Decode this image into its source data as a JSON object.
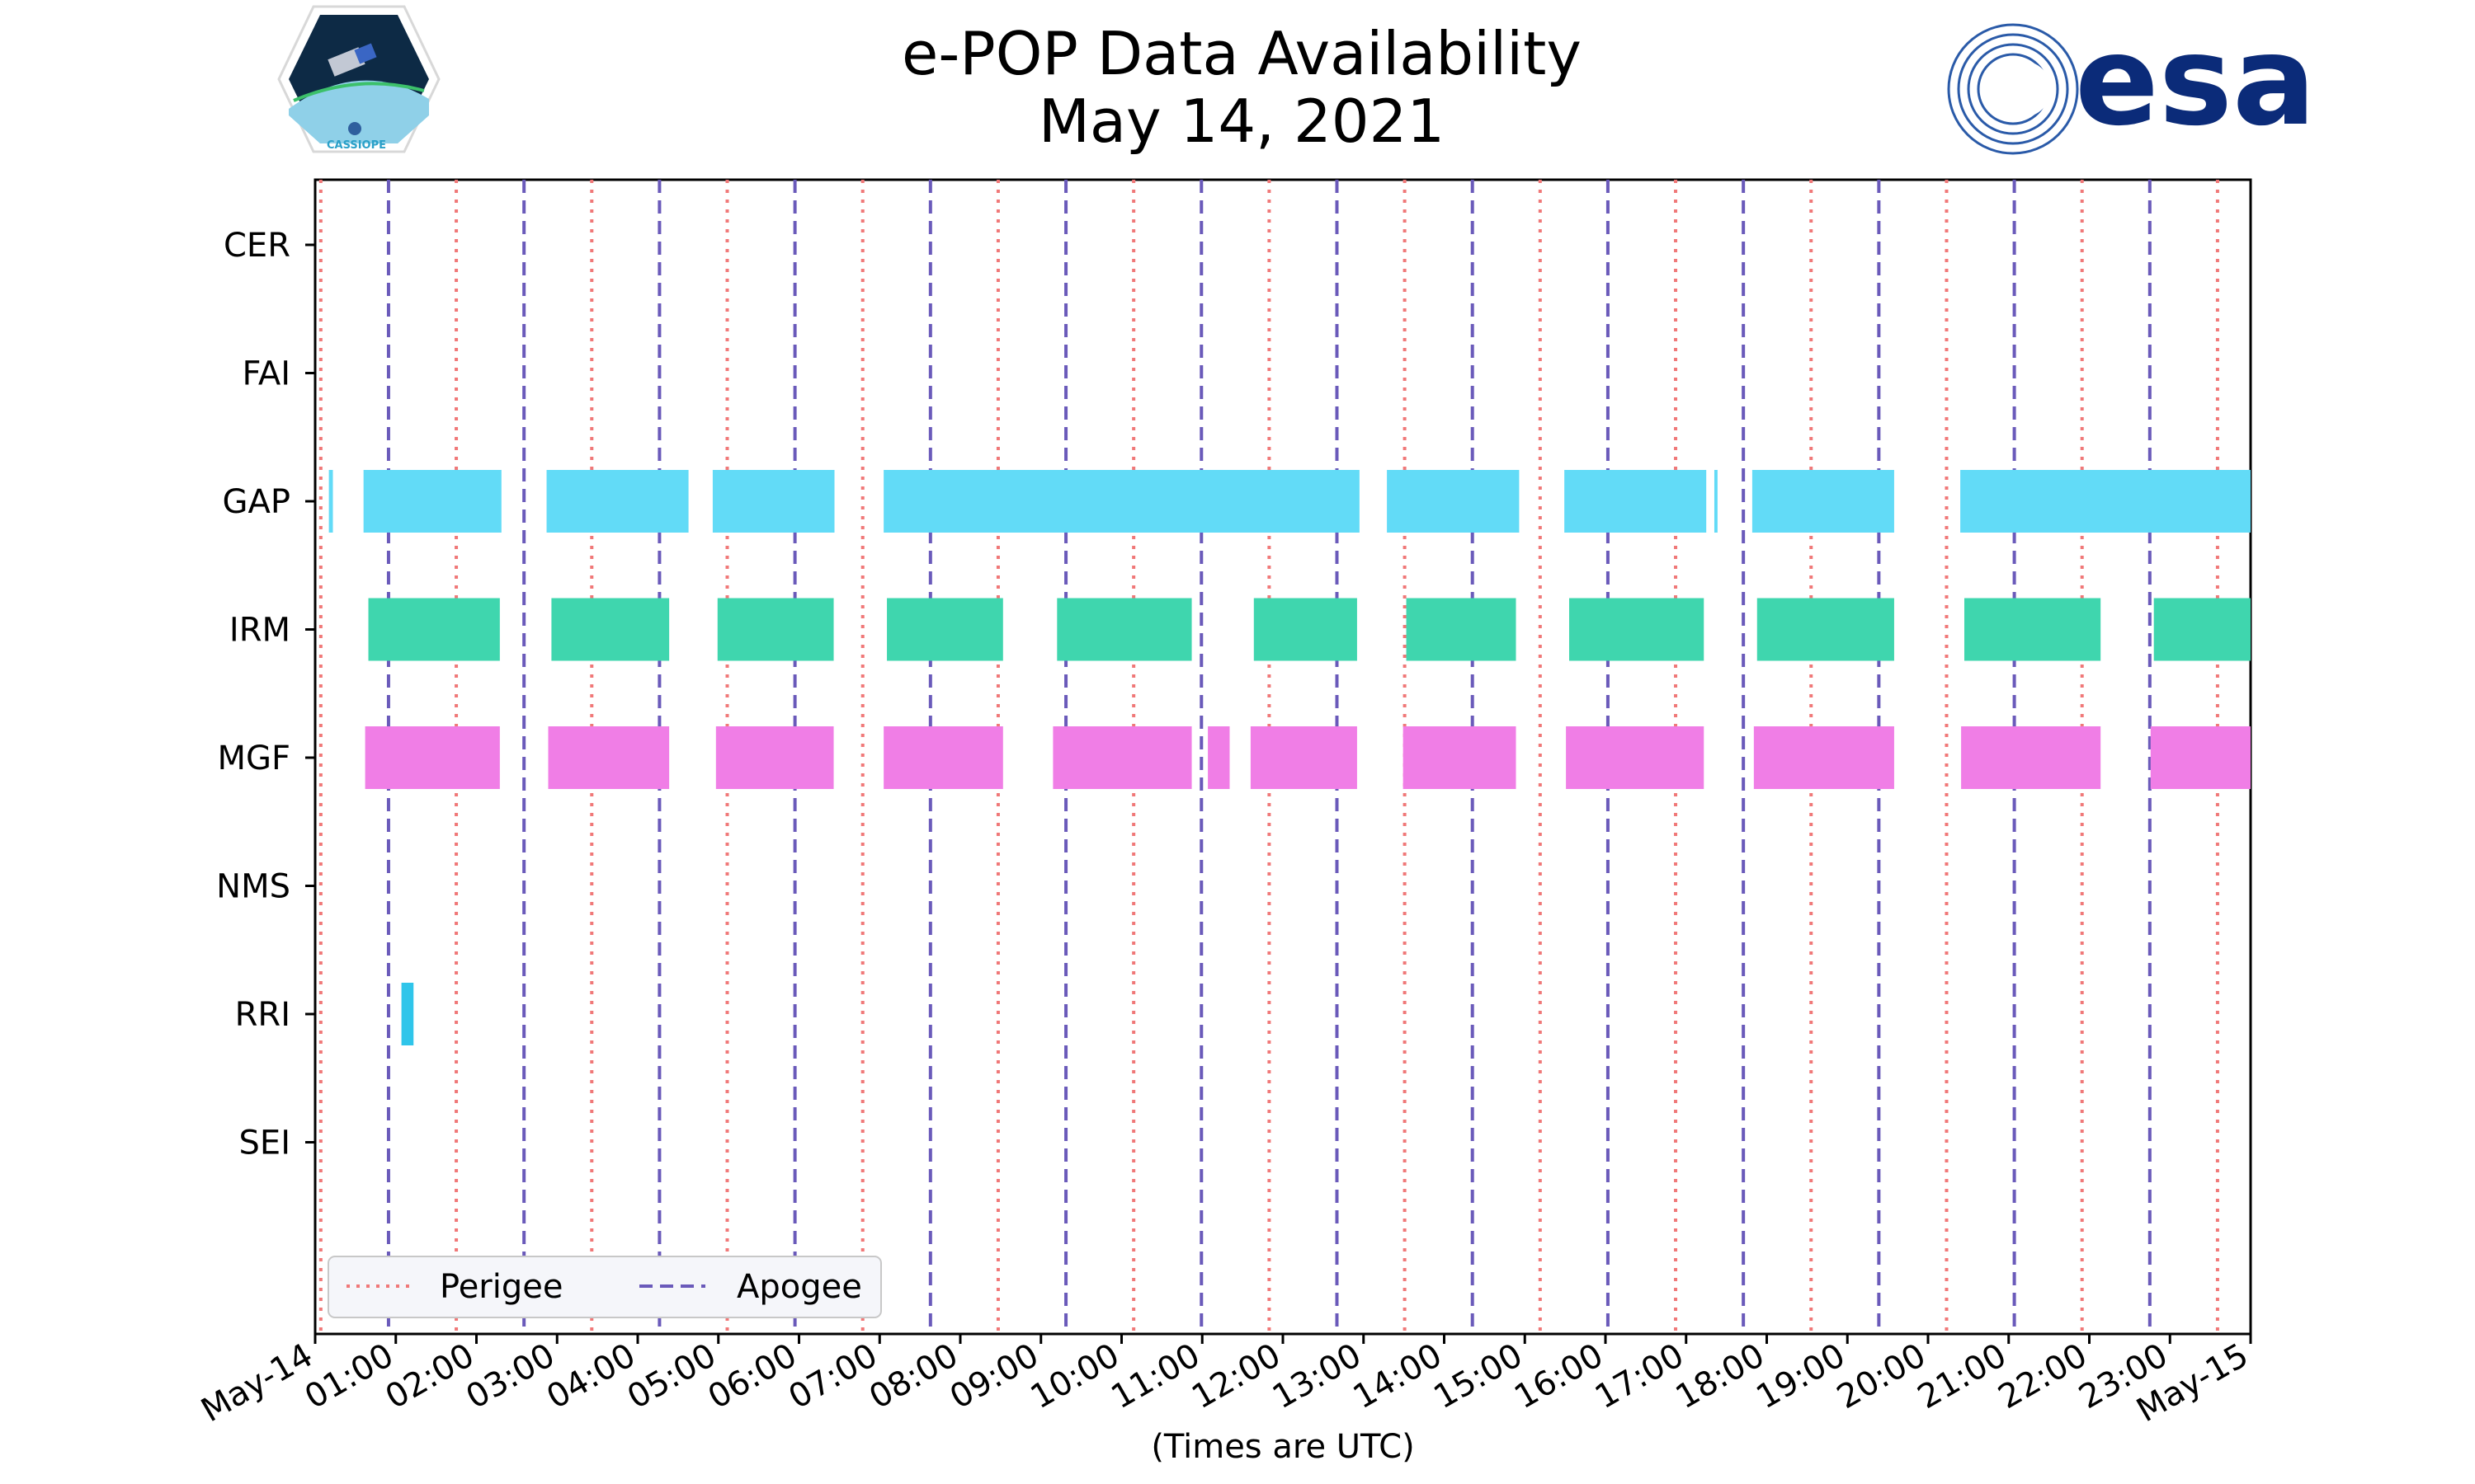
{
  "chart_data": {
    "type": "timeline",
    "title": "e-POP Data Availability",
    "subtitle": "May 14, 2021",
    "xlabel": "(Times are UTC)",
    "x_range_hours": [
      0,
      24
    ],
    "x_ticks": [
      "May-14",
      "01:00",
      "02:00",
      "03:00",
      "04:00",
      "05:00",
      "06:00",
      "07:00",
      "08:00",
      "09:00",
      "10:00",
      "11:00",
      "12:00",
      "13:00",
      "14:00",
      "15:00",
      "16:00",
      "17:00",
      "18:00",
      "19:00",
      "20:00",
      "21:00",
      "22:00",
      "23:00",
      "May-15"
    ],
    "instruments": [
      "CER",
      "FAI",
      "GAP",
      "IRM",
      "MGF",
      "NMS",
      "RRI",
      "SEI"
    ],
    "colors": {
      "GAP": "#62dbf7",
      "IRM": "#3fd6ae",
      "MGF": "#f07ee6",
      "RRI": "#2fc5ea",
      "perigee": "#f07878",
      "apogee": "#6a5aba"
    },
    "intervals_hours": {
      "CER": [],
      "FAI": [],
      "GAP": [
        [
          0.17,
          0.22
        ],
        [
          0.6,
          2.31
        ],
        [
          2.87,
          4.63
        ],
        [
          4.93,
          6.44
        ],
        [
          7.05,
          12.95
        ],
        [
          13.29,
          14.93
        ],
        [
          15.49,
          17.25
        ],
        [
          17.35,
          17.39
        ],
        [
          17.82,
          19.58
        ],
        [
          20.4,
          24.0
        ]
      ],
      "IRM": [
        [
          0.66,
          2.29
        ],
        [
          2.93,
          4.39
        ],
        [
          4.99,
          6.43
        ],
        [
          7.09,
          8.53
        ],
        [
          9.2,
          10.87
        ],
        [
          11.64,
          12.92
        ],
        [
          13.53,
          14.89
        ],
        [
          15.55,
          17.22
        ],
        [
          17.88,
          19.58
        ],
        [
          20.45,
          22.14
        ],
        [
          22.8,
          24.0
        ]
      ],
      "MGF": [
        [
          0.62,
          2.29
        ],
        [
          2.89,
          4.39
        ],
        [
          4.97,
          6.43
        ],
        [
          7.05,
          8.53
        ],
        [
          9.15,
          10.87
        ],
        [
          11.07,
          11.34
        ],
        [
          11.6,
          12.92
        ],
        [
          13.49,
          14.89
        ],
        [
          15.51,
          17.22
        ],
        [
          17.84,
          19.58
        ],
        [
          20.41,
          22.14
        ],
        [
          22.76,
          24.0
        ]
      ],
      "NMS": [],
      "RRI": [
        [
          1.07,
          1.22
        ]
      ],
      "SEI": []
    },
    "perigee_hours": [
      0.07,
      1.75,
      3.43,
      5.11,
      6.79,
      8.47,
      10.15,
      11.83,
      13.51,
      15.19,
      16.87,
      18.55,
      20.23,
      21.91,
      23.59
    ],
    "apogee_hours": [
      0.91,
      2.59,
      4.27,
      5.95,
      7.63,
      9.31,
      10.99,
      12.67,
      14.35,
      16.03,
      17.71,
      19.39,
      21.07,
      22.75
    ],
    "legend": [
      {
        "label": "Perigee",
        "style": "dotted"
      },
      {
        "label": "Apogee",
        "style": "dashed"
      }
    ],
    "legend_position": "lower-left"
  },
  "logos": {
    "left_badge_text": "CASSIOPE",
    "right_brand_text": "esa"
  }
}
